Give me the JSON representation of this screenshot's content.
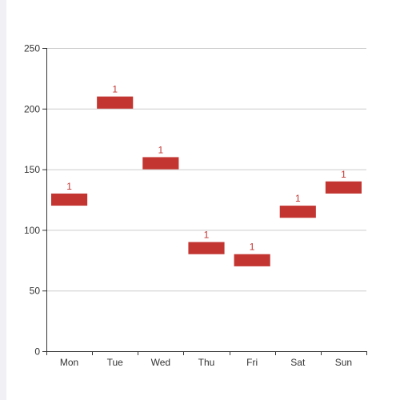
{
  "chart_data": {
    "type": "bar",
    "categories": [
      "Mon",
      "Tue",
      "Wed",
      "Thu",
      "Fri",
      "Sat",
      "Sun"
    ],
    "series": [
      {
        "ranges": [
          [
            120,
            130
          ],
          [
            200,
            210
          ],
          [
            150,
            160
          ],
          [
            80,
            90
          ],
          [
            70,
            80
          ],
          [
            110,
            120
          ],
          [
            130,
            140
          ]
        ],
        "labels": [
          "1",
          "1",
          "1",
          "1",
          "1",
          "1",
          "1"
        ]
      }
    ],
    "yticks": [
      0,
      50,
      100,
      150,
      200,
      250
    ],
    "ylim": [
      0,
      250
    ],
    "grid": true,
    "colors": {
      "bar": "#c23531",
      "label": "#c23531",
      "grid": "#cccccc",
      "axis": "#333333"
    }
  }
}
